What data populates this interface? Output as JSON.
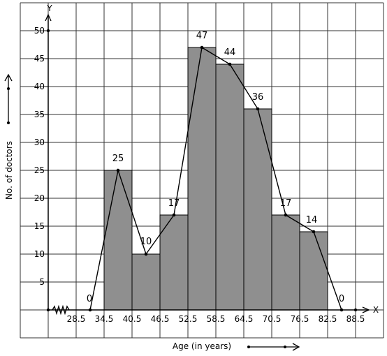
{
  "chart_data": {
    "type": "bar",
    "title": "",
    "xlabel": "Age (in years)",
    "ylabel": "No. of doctors",
    "x_axis_letter": "X",
    "y_axis_letter": "Y",
    "x_ticks": [
      "28.5",
      "34.5",
      "40.5",
      "46.5",
      "52.5",
      "58.5",
      "64.5",
      "70.5",
      "76.5",
      "82.5",
      "88.5"
    ],
    "y_ticks": [
      "5",
      "10",
      "15",
      "20",
      "25",
      "30",
      "35",
      "40",
      "45",
      "50"
    ],
    "ylim": [
      0,
      50
    ],
    "xlim": [
      28.5,
      88.5
    ],
    "grid": true,
    "bar_color": "#8f8f8f",
    "bars": [
      {
        "x0": 34.5,
        "x1": 40.5,
        "value": 25
      },
      {
        "x0": 40.5,
        "x1": 46.5,
        "value": 10
      },
      {
        "x0": 46.5,
        "x1": 52.5,
        "value": 17
      },
      {
        "x0": 52.5,
        "x1": 58.5,
        "value": 47
      },
      {
        "x0": 58.5,
        "x1": 64.5,
        "value": 44
      },
      {
        "x0": 64.5,
        "x1": 70.5,
        "value": 36
      },
      {
        "x0": 70.5,
        "x1": 76.5,
        "value": 17
      },
      {
        "x0": 76.5,
        "x1": 82.5,
        "value": 14
      }
    ],
    "frequency_polygon": [
      {
        "x": 31.5,
        "y": 0,
        "label": "0"
      },
      {
        "x": 37.5,
        "y": 25,
        "label": "25"
      },
      {
        "x": 43.5,
        "y": 10,
        "label": "10"
      },
      {
        "x": 49.5,
        "y": 17,
        "label": "17"
      },
      {
        "x": 55.5,
        "y": 47,
        "label": "47"
      },
      {
        "x": 61.5,
        "y": 44,
        "label": "44"
      },
      {
        "x": 67.5,
        "y": 36,
        "label": "36"
      },
      {
        "x": 73.5,
        "y": 17,
        "label": "17"
      },
      {
        "x": 79.5,
        "y": 14,
        "label": "14"
      },
      {
        "x": 85.5,
        "y": 0,
        "label": "0"
      }
    ]
  }
}
